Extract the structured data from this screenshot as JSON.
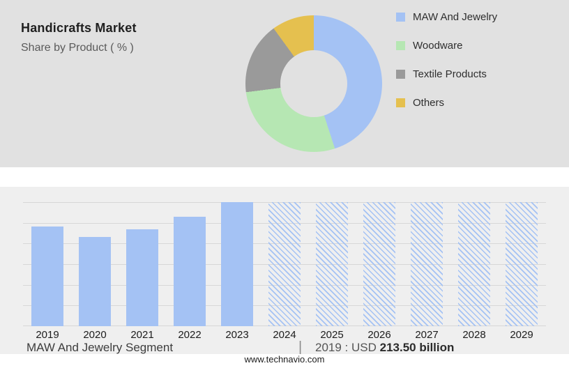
{
  "page": {
    "title": "Handicrafts Market",
    "subtitle": "Share by Product ( % )",
    "footer_url": "www.technavio.com"
  },
  "caption": {
    "segment_label": "MAW And Jewelry Segment",
    "divider": "|",
    "value_prefix": "2019 : USD",
    "value_bold": "213.50 billion"
  },
  "colors": {
    "top_bg": "#e1e1e1",
    "bottom_bg": "#efefef",
    "blue": "#a4c2f4",
    "green": "#b6e7b3",
    "gray": "#9a9a9a",
    "yellow": "#e5c04f",
    "gridline": "#d7d7d7"
  },
  "chart_data": [
    {
      "type": "pie",
      "donut": true,
      "title": "Handicrafts Market Share by Product ( % )",
      "legend_position": "right",
      "segments": [
        {
          "label": "MAW And Jewelry",
          "value": 45,
          "color": "#a4c2f4"
        },
        {
          "label": "Woodware",
          "value": 28,
          "color": "#b6e7b3"
        },
        {
          "label": "Textile Products",
          "value": 17,
          "color": "#9a9a9a"
        },
        {
          "label": "Others",
          "value": 10,
          "color": "#e5c04f"
        }
      ]
    },
    {
      "type": "bar",
      "title": "MAW And Jewelry Segment",
      "unit": "USD billion",
      "categories": [
        "2019",
        "2020",
        "2021",
        "2022",
        "2023",
        "2024",
        "2025",
        "2026",
        "2027",
        "2028",
        "2029"
      ],
      "values": [
        213.5,
        192,
        207,
        235,
        266,
        266,
        266,
        266,
        266,
        266,
        266
      ],
      "styles": [
        "solid",
        "solid",
        "solid",
        "solid",
        "solid",
        "hatched",
        "hatched",
        "hatched",
        "hatched",
        "hatched",
        "hatched"
      ],
      "annotation": "2019 : USD 213.50 billion",
      "ylim": [
        0,
        266
      ],
      "grid": true,
      "gridline_count": 7
    }
  ]
}
